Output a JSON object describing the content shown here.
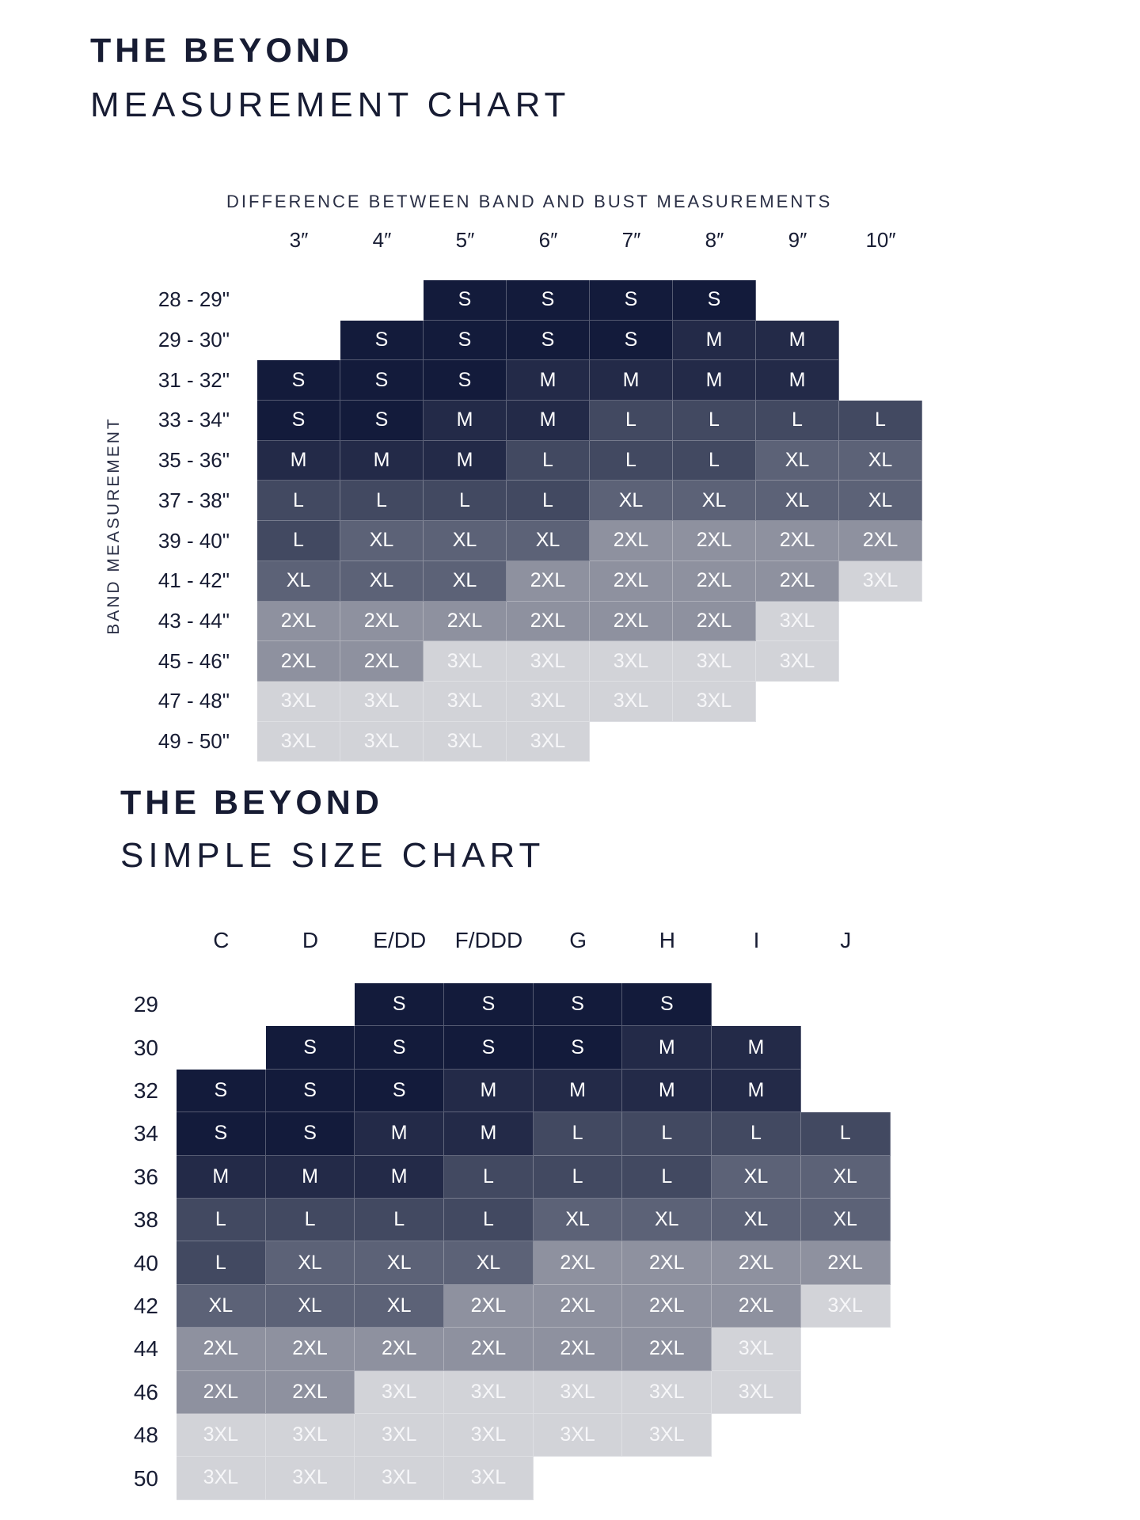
{
  "measurement_chart": {
    "brand": "THE BEYOND",
    "title": "MEASUREMENT CHART",
    "column_heading": "DIFFERENCE BETWEEN BAND AND BUST MEASUREMENTS",
    "row_heading": "BAND MEASUREMENT",
    "columns": [
      "3″",
      "4″",
      "5″",
      "6″",
      "7″",
      "8″",
      "9″",
      "10″"
    ],
    "rows": [
      {
        "label": "28 - 29\"",
        "cells": [
          "",
          "",
          "S",
          "S",
          "S",
          "S",
          "",
          ""
        ]
      },
      {
        "label": "29 - 30\"",
        "cells": [
          "",
          "S",
          "S",
          "S",
          "S",
          "M",
          "M",
          ""
        ]
      },
      {
        "label": "31 - 32\"",
        "cells": [
          "S",
          "S",
          "S",
          "M",
          "M",
          "M",
          "M",
          ""
        ]
      },
      {
        "label": "33 - 34\"",
        "cells": [
          "S",
          "S",
          "M",
          "M",
          "L",
          "L",
          "L",
          "L"
        ]
      },
      {
        "label": "35 - 36\"",
        "cells": [
          "M",
          "M",
          "M",
          "L",
          "L",
          "L",
          "XL",
          "XL"
        ]
      },
      {
        "label": "37 - 38\"",
        "cells": [
          "L",
          "L",
          "L",
          "L",
          "XL",
          "XL",
          "XL",
          "XL"
        ]
      },
      {
        "label": "39 - 40\"",
        "cells": [
          "L",
          "XL",
          "XL",
          "XL",
          "2XL",
          "2XL",
          "2XL",
          "2XL"
        ]
      },
      {
        "label": "41 - 42\"",
        "cells": [
          "XL",
          "XL",
          "XL",
          "2XL",
          "2XL",
          "2XL",
          "2XL",
          "3XL"
        ]
      },
      {
        "label": "43 - 44\"",
        "cells": [
          "2XL",
          "2XL",
          "2XL",
          "2XL",
          "2XL",
          "2XL",
          "3XL",
          ""
        ]
      },
      {
        "label": "45 - 46\"",
        "cells": [
          "2XL",
          "2XL",
          "3XL",
          "3XL",
          "3XL",
          "3XL",
          "3XL",
          ""
        ]
      },
      {
        "label": "47 - 48\"",
        "cells": [
          "3XL",
          "3XL",
          "3XL",
          "3XL",
          "3XL",
          "3XL",
          "",
          ""
        ]
      },
      {
        "label": "49 - 50\"",
        "cells": [
          "3XL",
          "3XL",
          "3XL",
          "3XL",
          "",
          "",
          "",
          ""
        ]
      }
    ]
  },
  "simple_chart": {
    "brand": "THE BEYOND",
    "title": "SIMPLE SIZE CHART",
    "columns": [
      "C",
      "D",
      "E/DD",
      "F/DDD",
      "G",
      "H",
      "I",
      "J"
    ],
    "rows": [
      {
        "label": "29",
        "cells": [
          "",
          "",
          "S",
          "S",
          "S",
          "S",
          "",
          ""
        ]
      },
      {
        "label": "30",
        "cells": [
          "",
          "S",
          "S",
          "S",
          "S",
          "M",
          "M",
          ""
        ]
      },
      {
        "label": "32",
        "cells": [
          "S",
          "S",
          "S",
          "M",
          "M",
          "M",
          "M",
          ""
        ]
      },
      {
        "label": "34",
        "cells": [
          "S",
          "S",
          "M",
          "M",
          "L",
          "L",
          "L",
          "L"
        ]
      },
      {
        "label": "36",
        "cells": [
          "M",
          "M",
          "M",
          "L",
          "L",
          "L",
          "XL",
          "XL"
        ]
      },
      {
        "label": "38",
        "cells": [
          "L",
          "L",
          "L",
          "L",
          "XL",
          "XL",
          "XL",
          "XL"
        ]
      },
      {
        "label": "40",
        "cells": [
          "L",
          "XL",
          "XL",
          "XL",
          "2XL",
          "2XL",
          "2XL",
          "2XL"
        ]
      },
      {
        "label": "42",
        "cells": [
          "XL",
          "XL",
          "XL",
          "2XL",
          "2XL",
          "2XL",
          "2XL",
          "3XL"
        ]
      },
      {
        "label": "44",
        "cells": [
          "2XL",
          "2XL",
          "2XL",
          "2XL",
          "2XL",
          "2XL",
          "3XL",
          ""
        ]
      },
      {
        "label": "46",
        "cells": [
          "2XL",
          "2XL",
          "3XL",
          "3XL",
          "3XL",
          "3XL",
          "3XL",
          ""
        ]
      },
      {
        "label": "48",
        "cells": [
          "3XL",
          "3XL",
          "3XL",
          "3XL",
          "3XL",
          "3XL",
          "",
          ""
        ]
      },
      {
        "label": "50",
        "cells": [
          "3XL",
          "3XL",
          "3XL",
          "3XL",
          "",
          "",
          "",
          ""
        ]
      }
    ]
  },
  "colors": {
    "S": "#131b3b",
    "M": "#232a48",
    "L": "#424961",
    "XL": "#5c6277",
    "2XL": "#8e919f",
    "3XL": "#d2d3d8"
  }
}
